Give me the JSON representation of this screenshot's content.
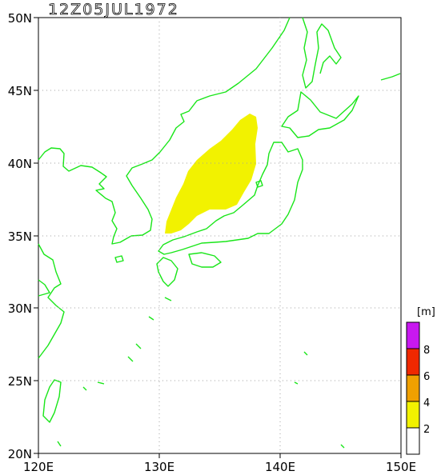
{
  "title": "12Z05JUL1972",
  "x_axis_labels": [
    "120E",
    "130E",
    "140E",
    "150E"
  ],
  "y_axis_labels": [
    "50N",
    "45N",
    "40N",
    "35N",
    "30N",
    "25N",
    "20N"
  ],
  "colorbar": {
    "unit": "[m]",
    "levels": [
      "2",
      "4",
      "6",
      "8"
    ],
    "colors": [
      "#ffffff",
      "#f2f200",
      "#f0a000",
      "#f02800",
      "#c818f0"
    ]
  },
  "map_colors": {
    "coast": "#19e619",
    "wave_fill": "#f2f200",
    "grid": "#a0a0a0"
  },
  "extent": {
    "lon": [
      120,
      150
    ],
    "lat": [
      20,
      50
    ]
  }
}
